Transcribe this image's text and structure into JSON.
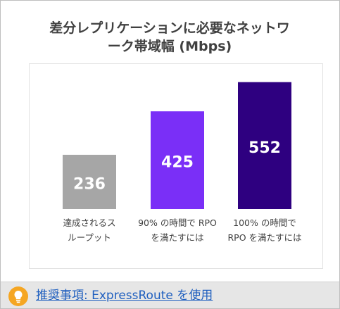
{
  "chart_data": {
    "type": "bar",
    "title": "差分レプリケーションに必要なネットワーク帯域幅 (Mbps)",
    "title_lines": [
      "差分レプリケーションに必要なネットワ",
      "ーク帯域幅 (Mbps)"
    ],
    "xlabel": "",
    "ylabel": "",
    "ylim": [
      0,
      600
    ],
    "grid": false,
    "legend": "none",
    "categories": [
      "達成されるスループット",
      "90% の時間で RPO を満たすには",
      "100% の時間で RPO を満たすには"
    ],
    "category_lines": [
      [
        "達成されるス",
        "ループット"
      ],
      [
        "90% の時間で RPO",
        "を満たすには"
      ],
      [
        "100% の時間で",
        "RPO を満たすには"
      ]
    ],
    "values": [
      236,
      425,
      552
    ],
    "data_labels": [
      "236",
      "425",
      "552"
    ],
    "colors": [
      "#a6a6a6",
      "#7a2ff7",
      "#2e0080"
    ]
  },
  "footer": {
    "icon": "lightbulb-icon",
    "link_prefix": "推奨事項",
    "link_rest": ": ExpressRoute を使用",
    "accent": "#f5a623"
  }
}
